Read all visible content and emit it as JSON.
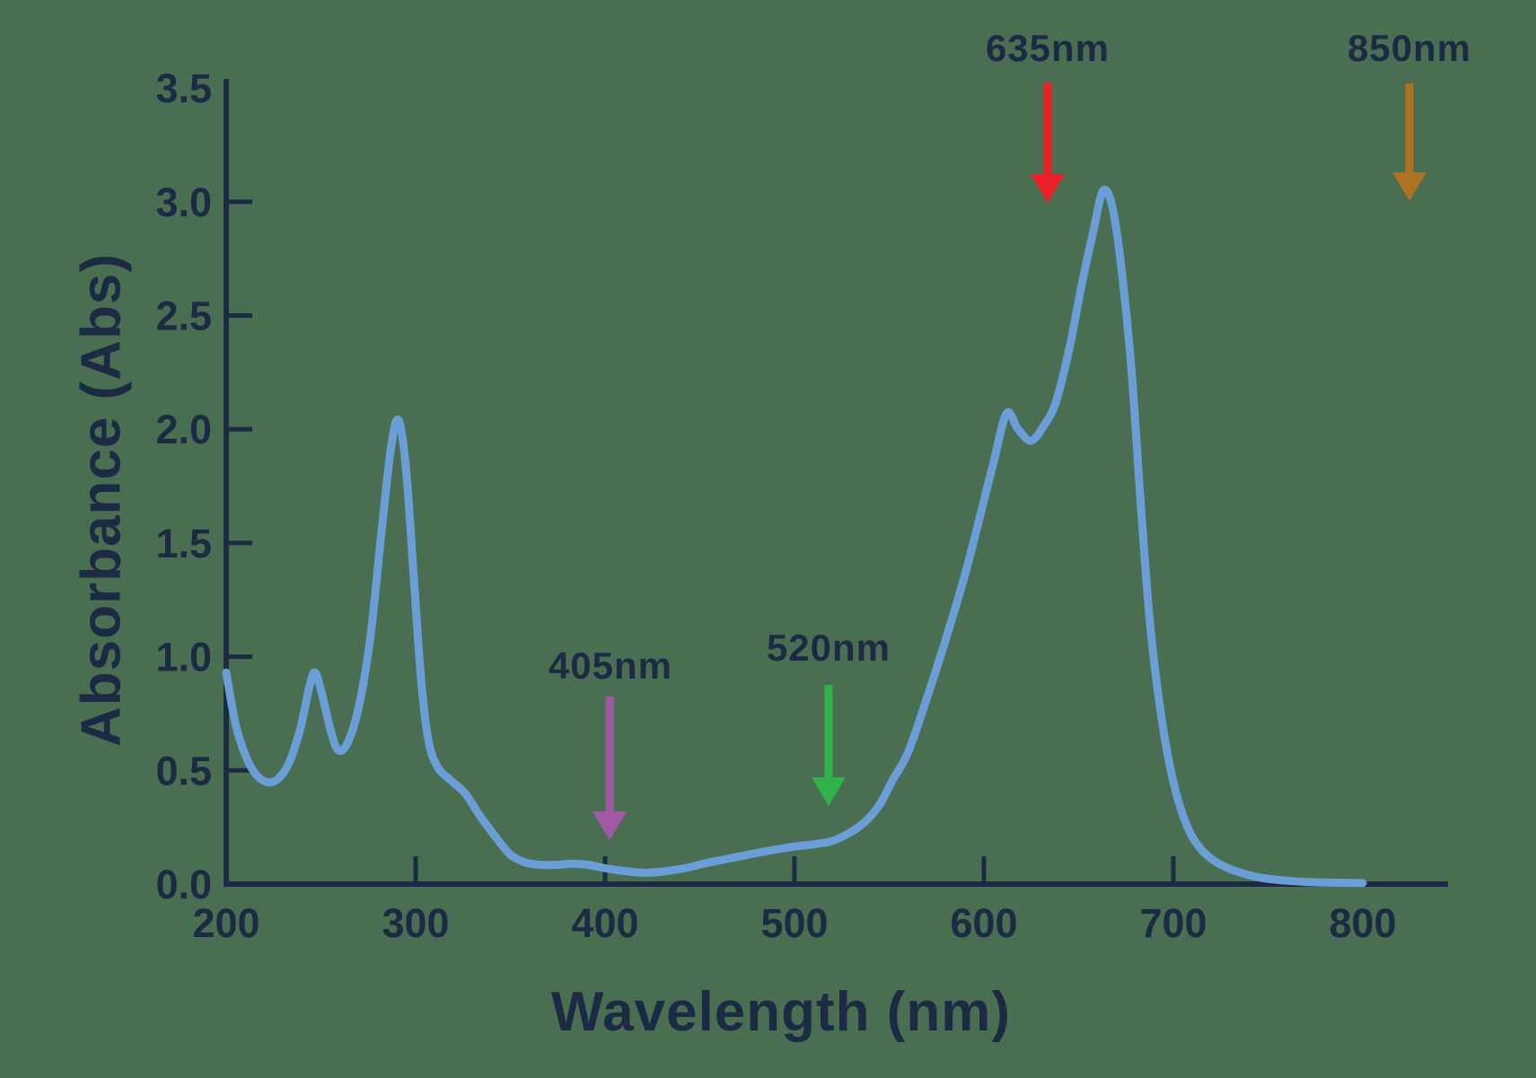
{
  "background_color": "#4a6e51",
  "chart_data": {
    "type": "line",
    "title": "",
    "xlabel": "Wavelength (nm)",
    "ylabel": "Absorbance (Abs)",
    "xlim": [
      200,
      800
    ],
    "ylim": [
      0,
      3.5
    ],
    "x_ticks": [
      200,
      300,
      400,
      500,
      600,
      700,
      800
    ],
    "y_ticks": [
      0.0,
      0.5,
      1.0,
      1.5,
      2.0,
      2.5,
      3.0,
      3.5
    ],
    "y_tick_labels": [
      "0.0",
      "0.5",
      "1.0",
      "1.5",
      "2.0",
      "2.5",
      "3.0",
      "3.5"
    ],
    "grid": false,
    "legend": "none",
    "axis_color": "#1d2a44",
    "text_color": "#1d2a44",
    "line_color": "#6b9dd6",
    "series": [
      {
        "name": "absorbance-spectrum",
        "points": [
          [
            200,
            0.93
          ],
          [
            205,
            0.7
          ],
          [
            210,
            0.57
          ],
          [
            215,
            0.49
          ],
          [
            221,
            0.45
          ],
          [
            227,
            0.46
          ],
          [
            233,
            0.53
          ],
          [
            239,
            0.68
          ],
          [
            244,
            0.87
          ],
          [
            247,
            0.93
          ],
          [
            251,
            0.82
          ],
          [
            255,
            0.68
          ],
          [
            259,
            0.59
          ],
          [
            264,
            0.62
          ],
          [
            270,
            0.78
          ],
          [
            276,
            1.08
          ],
          [
            282,
            1.55
          ],
          [
            287,
            1.92
          ],
          [
            291,
            2.04
          ],
          [
            295,
            1.82
          ],
          [
            299,
            1.35
          ],
          [
            303,
            0.89
          ],
          [
            307,
            0.62
          ],
          [
            312,
            0.51
          ],
          [
            318,
            0.46
          ],
          [
            326,
            0.4
          ],
          [
            334,
            0.3
          ],
          [
            342,
            0.21
          ],
          [
            350,
            0.13
          ],
          [
            358,
            0.095
          ],
          [
            366,
            0.085
          ],
          [
            375,
            0.085
          ],
          [
            383,
            0.09
          ],
          [
            391,
            0.085
          ],
          [
            400,
            0.07
          ],
          [
            410,
            0.058
          ],
          [
            420,
            0.05
          ],
          [
            430,
            0.055
          ],
          [
            442,
            0.07
          ],
          [
            455,
            0.095
          ],
          [
            470,
            0.12
          ],
          [
            485,
            0.145
          ],
          [
            500,
            0.165
          ],
          [
            510,
            0.175
          ],
          [
            520,
            0.19
          ],
          [
            530,
            0.23
          ],
          [
            538,
            0.28
          ],
          [
            545,
            0.35
          ],
          [
            552,
            0.46
          ],
          [
            560,
            0.58
          ],
          [
            570,
            0.82
          ],
          [
            580,
            1.08
          ],
          [
            590,
            1.36
          ],
          [
            598,
            1.62
          ],
          [
            605,
            1.85
          ],
          [
            612,
            2.07
          ],
          [
            618,
            2.0
          ],
          [
            625,
            1.95
          ],
          [
            632,
            2.02
          ],
          [
            638,
            2.12
          ],
          [
            645,
            2.35
          ],
          [
            652,
            2.65
          ],
          [
            658,
            2.88
          ],
          [
            663,
            3.05
          ],
          [
            668,
            2.97
          ],
          [
            673,
            2.68
          ],
          [
            678,
            2.25
          ],
          [
            683,
            1.65
          ],
          [
            688,
            1.12
          ],
          [
            694,
            0.72
          ],
          [
            700,
            0.45
          ],
          [
            707,
            0.26
          ],
          [
            714,
            0.16
          ],
          [
            722,
            0.1
          ],
          [
            732,
            0.06
          ],
          [
            745,
            0.03
          ],
          [
            760,
            0.015
          ],
          [
            775,
            0.008
          ],
          [
            800,
            0.005
          ]
        ]
      }
    ],
    "annotations": [
      {
        "label": "405nm",
        "wavelength_nm": 405,
        "color": "#a159a5"
      },
      {
        "label": "520nm",
        "wavelength_nm": 520,
        "color": "#2fb24a"
      },
      {
        "label": "635nm",
        "wavelength_nm": 635,
        "color": "#ec2127"
      },
      {
        "label": "850nm",
        "wavelength_nm": 850,
        "color": "#ad7322"
      }
    ]
  }
}
